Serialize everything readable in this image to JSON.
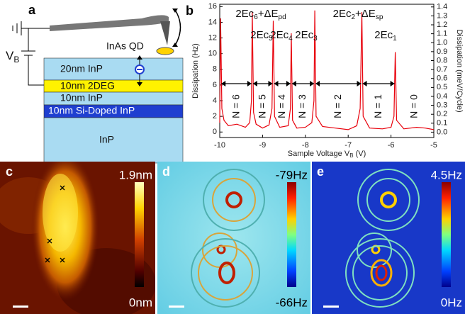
{
  "panel_a": {
    "label": "a",
    "qd": "InAs QD",
    "vb": {
      "text": "V",
      "sub": "B"
    },
    "layers": [
      "20nm InP",
      "10nm 2DEG",
      "10nm InP",
      "10nm Si-Doped InP",
      "InP"
    ]
  },
  "chart_data": {
    "type": "line",
    "panel_label": "b",
    "y_label": "Dissipation (Hz)",
    "y2_label": "Dissipation (meV/Cycle)",
    "x_label": {
      "text": "Sample Voltage V",
      "sub": "B",
      "unit": " (V)"
    },
    "color": "#e8000b",
    "x": [
      -10,
      -9.98,
      -9.95,
      -9.9,
      -9.8,
      -9.6,
      -9.4,
      -9.3,
      -9.26,
      -9.24,
      -9.21,
      -9.15,
      -9.0,
      -8.85,
      -8.78,
      -8.75,
      -8.72,
      -8.6,
      -8.4,
      -8.35,
      -8.33,
      -8.3,
      -8.2,
      -8.0,
      -7.85,
      -7.8,
      -7.78,
      -7.75,
      -7.6,
      -7.3,
      -7.0,
      -6.8,
      -6.72,
      -6.68,
      -6.65,
      -6.5,
      -6.2,
      -6.0,
      -5.93,
      -5.9,
      -5.87,
      -5.7,
      -5.4,
      -5.2,
      -5.0
    ],
    "values": [
      1.2,
      14.5,
      3,
      1.5,
      0.8,
      1.0,
      0.6,
      1.2,
      4,
      15.3,
      2.5,
      1.0,
      0.5,
      0.9,
      3,
      14.2,
      2,
      0.6,
      0.8,
      3,
      12.6,
      1.5,
      0.5,
      0.6,
      1.2,
      4,
      15.5,
      2,
      0.7,
      0.5,
      0.3,
      0.8,
      3,
      15.3,
      2,
      0.5,
      0.4,
      0.6,
      2,
      10.2,
      1.5,
      0.4,
      0.6,
      0.5,
      0.3
    ],
    "xlim": [
      -10,
      -5
    ],
    "xticks": [
      -10,
      -9,
      -8,
      -7,
      -6,
      -5
    ],
    "ylim": [
      -0.7,
      16.3
    ],
    "yticks": [
      0,
      2,
      4,
      6,
      8,
      10,
      12,
      14,
      16
    ],
    "y2lim": [
      -0.06,
      1.43
    ],
    "y2ticks": [
      {
        "value": 0,
        "label": "0.0"
      },
      0.1,
      0.2,
      0.3,
      0.4,
      0.5,
      0.6,
      0.7,
      0.8,
      0.9,
      {
        "value": 1,
        "label": "1.0"
      },
      1.1,
      1.2,
      1.3,
      1.4
    ],
    "peak_labels": [
      {
        "text": "2Ec",
        "sub": "6",
        "extra": "+ΔE",
        "sub2": "pd"
      },
      {
        "text": "2Ec",
        "sub": "5"
      },
      {
        "text": "2Ec",
        "sub": "4"
      },
      {
        "text": "2Ec",
        "sub": "3"
      },
      {
        "text": "2Ec",
        "sub": "2",
        "extra": "+ΔE",
        "sub2": "sp"
      },
      {
        "text": "2Ec",
        "sub": "1"
      }
    ],
    "regions": [
      {
        "label": "N = 6",
        "from": -9.98,
        "to": -9.24,
        "arrow": true
      },
      {
        "label": "N = 5",
        "from": -9.24,
        "to": -8.75,
        "arrow": true
      },
      {
        "label": "N = 4",
        "from": -8.75,
        "to": -8.33,
        "arrow": true
      },
      {
        "label": "N = 3",
        "from": -8.33,
        "to": -7.78,
        "arrow": true
      },
      {
        "label": "N = 2",
        "from": -7.78,
        "to": -6.68,
        "arrow": true
      },
      {
        "label": "N = 1",
        "from": -6.68,
        "to": -5.9,
        "arrow": true
      },
      {
        "label": "N = 0",
        "from": -5.9,
        "to": -5,
        "arrow": false
      }
    ]
  },
  "panel_c": {
    "label": "c",
    "scale_max": "1.9nm",
    "scale_min": "0nm"
  },
  "panel_d": {
    "label": "d",
    "scale_max": "-79Hz",
    "scale_min": "-66Hz"
  },
  "panel_e": {
    "label": "e",
    "scale_max": "4.5Hz",
    "scale_min": "0Hz"
  }
}
